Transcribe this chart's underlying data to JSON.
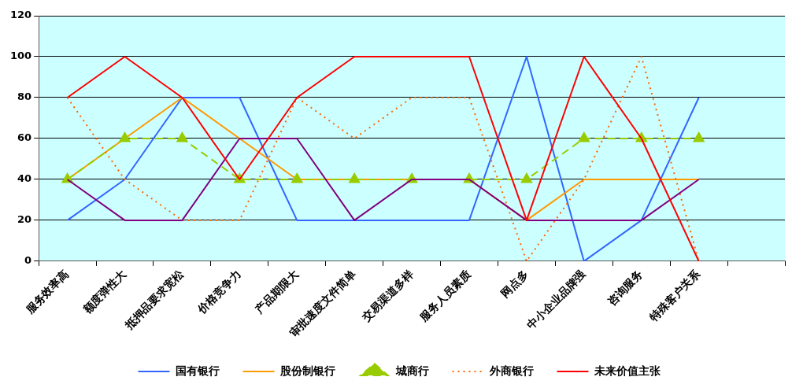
{
  "chart_data": {
    "type": "line",
    "categories": [
      "服务效率高",
      "额度弹性大",
      "抵押品要求宽松",
      "价格竞争力",
      "产品期限大",
      "审批速度文件简单",
      "交易渠道多样",
      "服务人员素质",
      "网点多",
      "中小企业品牌强",
      "咨询服务",
      "特殊客户关系",
      null
    ],
    "ylim": [
      0,
      120
    ],
    "yticks": [
      0,
      20,
      40,
      60,
      80,
      100,
      120
    ],
    "grid": "y",
    "legend": "bottom",
    "marker": "none",
    "line_style": "solid",
    "series": [
      {
        "name": "国有银行",
        "color": "#3366ff",
        "values": [
          20,
          40,
          80,
          80,
          20,
          20,
          20,
          20,
          100,
          0,
          20,
          80,
          null
        ]
      },
      {
        "name": "股份制银行",
        "color": "#ff9900",
        "values": [
          40,
          60,
          80,
          60,
          40,
          40,
          40,
          40,
          20,
          40,
          40,
          40,
          null
        ]
      },
      {
        "name": "城商行",
        "color": "#99cc00",
        "marker": "triangle",
        "line_style": "dashed",
        "values": [
          40,
          60,
          60,
          40,
          40,
          40,
          40,
          40,
          40,
          60,
          60,
          60,
          null
        ]
      },
      {
        "name": "外商银行",
        "color": "#ff6600",
        "line_style": "dotted",
        "values": [
          80,
          40,
          20,
          20,
          80,
          60,
          80,
          80,
          0,
          40,
          100,
          0,
          null
        ]
      },
      {
        "color": "#800080",
        "values": [
          40,
          20,
          20,
          60,
          60,
          20,
          40,
          40,
          20,
          20,
          20,
          40,
          null
        ]
      },
      {
        "name": "未来价值主张",
        "color": "#ff0000",
        "values": [
          80,
          100,
          80,
          40,
          80,
          100,
          100,
          100,
          20,
          100,
          60,
          0,
          null
        ]
      }
    ]
  }
}
